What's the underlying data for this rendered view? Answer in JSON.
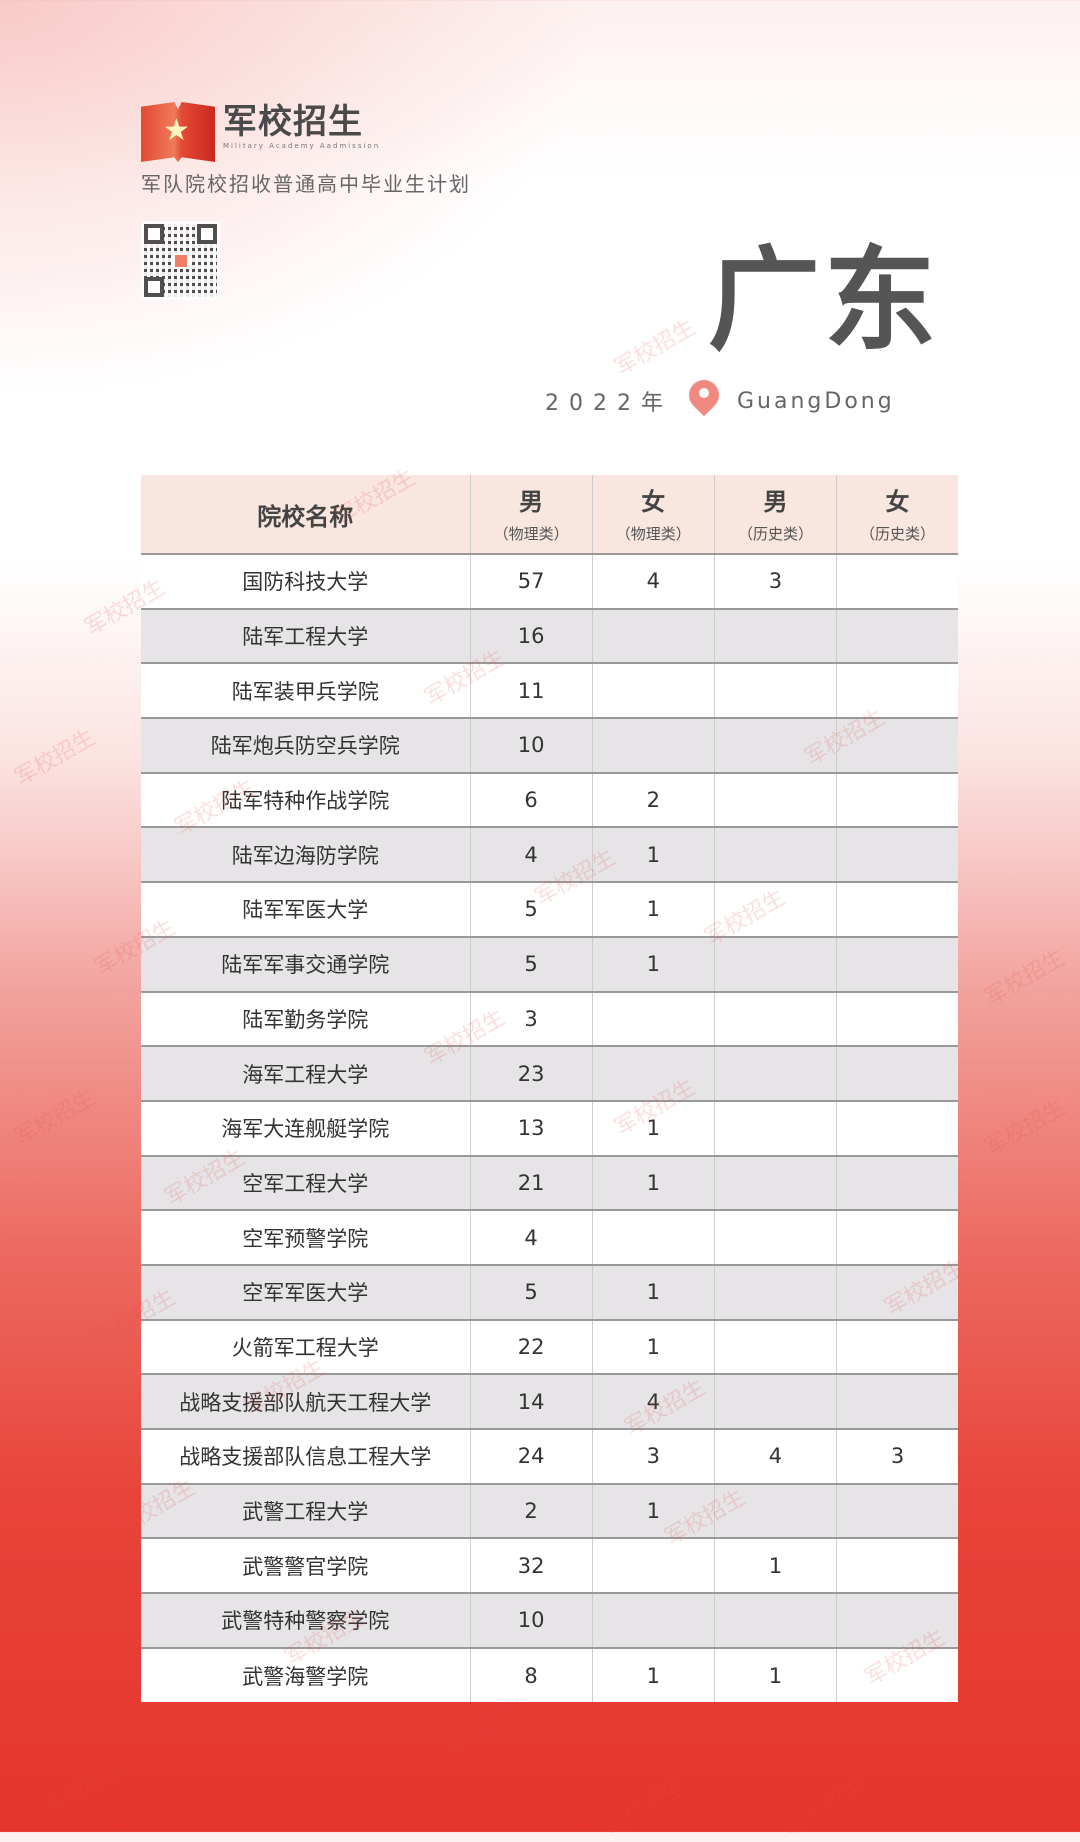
{
  "brand": {
    "title": "军校招生",
    "subtitle_en": "Military Academy Aadmission"
  },
  "header": {
    "subtitle": "军队院校招收普通高中毕业生计划",
    "province": "广东",
    "year": "2022年",
    "province_en": "GuangDong"
  },
  "colors": {
    "header_bg": "#f8e6df",
    "row_alt": "#e6e4e6",
    "accent": "#e5352d",
    "pin": "#f08a80"
  },
  "watermark": "军校招生",
  "table": {
    "headers": [
      {
        "label": "院校名称"
      },
      {
        "label": "男",
        "sub": "（物理类）"
      },
      {
        "label": "女",
        "sub": "（物理类）"
      },
      {
        "label": "男",
        "sub": "（历史类）"
      },
      {
        "label": "女",
        "sub": "（历史类）"
      }
    ],
    "rows": [
      [
        "国防科技大学",
        "57",
        "4",
        "3",
        ""
      ],
      [
        "陆军工程大学",
        "16",
        "",
        "",
        ""
      ],
      [
        "陆军装甲兵学院",
        "11",
        "",
        "",
        ""
      ],
      [
        "陆军炮兵防空兵学院",
        "10",
        "",
        "",
        ""
      ],
      [
        "陆军特种作战学院",
        "6",
        "2",
        "",
        ""
      ],
      [
        "陆军边海防学院",
        "4",
        "1",
        "",
        ""
      ],
      [
        "陆军军医大学",
        "5",
        "1",
        "",
        ""
      ],
      [
        "陆军军事交通学院",
        "5",
        "1",
        "",
        ""
      ],
      [
        "陆军勤务学院",
        "3",
        "",
        "",
        ""
      ],
      [
        "海军工程大学",
        "23",
        "",
        "",
        ""
      ],
      [
        "海军大连舰艇学院",
        "13",
        "1",
        "",
        ""
      ],
      [
        "空军工程大学",
        "21",
        "1",
        "",
        ""
      ],
      [
        "空军预警学院",
        "4",
        "",
        "",
        ""
      ],
      [
        "空军军医大学",
        "5",
        "1",
        "",
        ""
      ],
      [
        "火箭军工程大学",
        "22",
        "1",
        "",
        ""
      ],
      [
        "战略支援部队航天工程大学",
        "14",
        "4",
        "",
        ""
      ],
      [
        "战略支援部队信息工程大学",
        "24",
        "3",
        "4",
        "3"
      ],
      [
        "武警工程大学",
        "2",
        "1",
        "",
        ""
      ],
      [
        "武警警官学院",
        "32",
        "",
        "1",
        ""
      ],
      [
        "武警特种警察学院",
        "10",
        "",
        "",
        ""
      ],
      [
        "武警海警学院",
        "8",
        "1",
        "1",
        ""
      ]
    ]
  }
}
